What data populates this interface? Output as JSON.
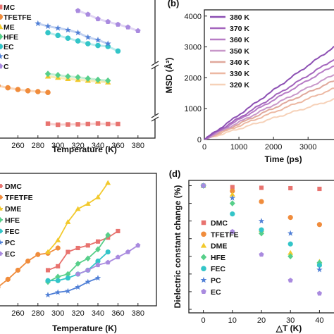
{
  "colors": {
    "DMC": "#e8736f",
    "TFETFE": "#f08c3c",
    "DME": "#f2c92c",
    "HFE": "#57cf8a",
    "FEC": "#33c5c8",
    "PC": "#4f7fd6",
    "EC": "#a98adf"
  },
  "chart_data": [
    {
      "id": "a",
      "type": "line",
      "xlabel": "Temperature (K)",
      "xlim": [
        240,
        385
      ],
      "xticks": [
        "260",
        "280",
        "300",
        "320",
        "340",
        "360",
        "380"
      ],
      "legend": {
        "position": "top-left",
        "labels": [
          "DMC",
          "TFETFE",
          "DME",
          "HFE",
          "FEC",
          "PC",
          "EC"
        ],
        "shown": [
          "MC",
          "TFETFE",
          "ME",
          "HFE",
          "EC",
          "C",
          "C"
        ]
      },
      "series": [
        {
          "name": "DMC",
          "marker": "square",
          "x": [
            290,
            300,
            310,
            320,
            330,
            340,
            350,
            360
          ],
          "y": [
            0.62,
            0.55,
            0.57,
            0.58,
            0.6,
            0.63,
            0.6,
            0.6
          ]
        },
        {
          "name": "TFETFE",
          "marker": "circle",
          "x": [
            240,
            250,
            260,
            270,
            280,
            290
          ],
          "y": [
            4.2,
            3.95,
            3.75,
            3.6,
            3.5,
            3.4
          ]
        },
        {
          "name": "DME",
          "marker": "triangle",
          "x": [
            290,
            300,
            310,
            320,
            330,
            340,
            350
          ],
          "y": [
            5.3,
            5.15,
            5.0,
            4.9,
            4.8,
            4.7,
            4.6
          ]
        },
        {
          "name": "HFE",
          "marker": "diamond",
          "x": [
            290,
            300,
            310,
            320,
            330,
            340,
            350
          ],
          "y": [
            5.6,
            5.45,
            5.3,
            5.2,
            5.05,
            4.9,
            4.8
          ]
        },
        {
          "name": "FEC",
          "marker": "circle",
          "x": [
            290,
            300,
            310,
            320,
            330,
            340,
            350,
            360
          ],
          "y": [
            8.1,
            7.95,
            7.8,
            7.65,
            7.5,
            7.4,
            7.35,
            7.1
          ]
        },
        {
          "name": "PC",
          "marker": "star",
          "x": [
            280,
            290,
            300,
            310,
            320,
            330,
            340,
            350
          ],
          "y": [
            8.6,
            8.45,
            8.35,
            8.25,
            8.1,
            7.85,
            7.7,
            7.5
          ]
        },
        {
          "name": "EC",
          "marker": "pentagon",
          "x": [
            320,
            330,
            340,
            350,
            360,
            370,
            380
          ],
          "y": [
            9.3,
            9.1,
            8.85,
            8.7,
            8.55,
            8.4,
            8.2
          ]
        }
      ]
    },
    {
      "id": "b",
      "type": "line",
      "xlabel": "Time (ps)",
      "ylabel": "MSD (Å²)",
      "xlim": [
        0,
        3750
      ],
      "ylim": [
        0,
        4200
      ],
      "xticks": [
        0,
        1000,
        2000,
        3000
      ],
      "yticks": [
        0,
        1000,
        2000,
        3000,
        4000
      ],
      "legend": {
        "position": "top-left",
        "labels": [
          "380 K",
          "370 K",
          "360 K",
          "350 K",
          "340 K",
          "330 K",
          "320 K"
        ]
      },
      "series": [
        {
          "name": "380 K",
          "color": "#8c4fb3",
          "x": [
            0,
            3750
          ],
          "y": [
            0,
            3000
          ]
        },
        {
          "name": "370 K",
          "color": "#a364bd",
          "x": [
            0,
            3750
          ],
          "y": [
            0,
            2600
          ]
        },
        {
          "name": "360 K",
          "color": "#b77cc6",
          "x": [
            0,
            3750
          ],
          "y": [
            0,
            2400
          ]
        },
        {
          "name": "350 K",
          "color": "#c897c9",
          "x": [
            0,
            3750
          ],
          "y": [
            0,
            2100
          ]
        },
        {
          "name": "340 K",
          "color": "#e0a89b",
          "x": [
            0,
            3750
          ],
          "y": [
            0,
            1900
          ]
        },
        {
          "name": "330 K",
          "color": "#ecb8a2",
          "x": [
            0,
            3750
          ],
          "y": [
            0,
            1650
          ]
        },
        {
          "name": "320 K",
          "color": "#f6d1b8",
          "x": [
            0,
            3750
          ],
          "y": [
            0,
            1300
          ]
        }
      ]
    },
    {
      "id": "c",
      "type": "line",
      "xlabel": "Temperature (K)",
      "xlim": [
        240,
        385
      ],
      "xticks": [
        "260",
        "280",
        "300",
        "320",
        "340",
        "360",
        "380"
      ],
      "ylim": [
        0,
        10
      ],
      "legend": {
        "position": "top-left",
        "labels": [
          "DMC",
          "TFETFE",
          "DME",
          "HFE",
          "FEC",
          "PC",
          "EC"
        ],
        "shown": [
          "DMC",
          "TFETFE",
          "DME",
          "HFE",
          "FEC",
          "PC",
          "EC"
        ]
      },
      "series": [
        {
          "name": "DMC",
          "marker": "square",
          "x": [
            290,
            300,
            310,
            320,
            330,
            340,
            350,
            360
          ],
          "y": [
            2.3,
            2.6,
            3.7,
            4.0,
            4.2,
            4.5,
            4.8,
            5.3
          ]
        },
        {
          "name": "TFETFE",
          "marker": "circle",
          "x": [
            240,
            250,
            260,
            270,
            280,
            290,
            300
          ],
          "y": [
            1.0,
            1.6,
            2.3,
            3.0,
            3.5,
            3.6,
            4.0
          ]
        },
        {
          "name": "DME",
          "marker": "triangle",
          "x": [
            290,
            300,
            310,
            320,
            330,
            340,
            350
          ],
          "y": [
            3.7,
            4.6,
            6.0,
            7.0,
            7.4,
            7.9,
            9.0
          ]
        },
        {
          "name": "HFE",
          "marker": "diamond",
          "x": [
            290,
            300,
            310,
            320,
            330,
            340,
            350
          ],
          "y": [
            1.4,
            1.8,
            2.0,
            2.8,
            3.2,
            3.9,
            5.0
          ]
        },
        {
          "name": "FEC",
          "marker": "circle",
          "x": [
            290,
            300,
            310,
            320,
            330,
            340,
            350
          ],
          "y": [
            1.5,
            1.5,
            1.7,
            2.0,
            2.3,
            3.0,
            3.7
          ]
        },
        {
          "name": "PC",
          "marker": "star",
          "x": [
            290,
            300,
            310,
            320,
            330,
            340
          ],
          "y": [
            0.4,
            0.6,
            0.7,
            1.0,
            1.4,
            1.7
          ]
        },
        {
          "name": "EC",
          "marker": "pentagon",
          "x": [
            320,
            330,
            340,
            350,
            360,
            370,
            380
          ],
          "y": [
            2.0,
            2.3,
            2.7,
            2.9,
            3.3,
            3.7,
            4.2
          ]
        }
      ]
    },
    {
      "id": "d",
      "type": "scatter",
      "xlabel": "△T (K)",
      "ylabel": "Dielectric constant change (%)",
      "xlim": [
        -5,
        45
      ],
      "ylim": [
        -36,
        1.5
      ],
      "xticks": [
        0,
        10,
        20,
        30,
        40
      ],
      "yticks": [
        0,
        -5,
        -10,
        -15,
        -20,
        -25,
        -30,
        -35
      ],
      "legend": {
        "position": "bottom-left",
        "labels": [
          "DMC",
          "TFETFE",
          "DME",
          "HFE",
          "FEC",
          "PC",
          "EC"
        ]
      },
      "series": [
        {
          "name": "DMC",
          "marker": "square",
          "x": [
            0,
            10,
            20,
            30,
            40
          ],
          "y": [
            0,
            -0.4,
            -0.6,
            -0.7,
            -0.9
          ]
        },
        {
          "name": "TFETFE",
          "marker": "circle",
          "x": [
            0,
            10,
            20,
            30,
            40
          ],
          "y": [
            0,
            -1.5,
            -4.5,
            -9.0,
            -11.0
          ]
        },
        {
          "name": "DME",
          "marker": "triangle",
          "x": [
            0,
            10,
            20,
            30,
            40
          ],
          "y": [
            0,
            -2.5,
            -12.5,
            -19.0,
            -21.5
          ]
        },
        {
          "name": "HFE",
          "marker": "diamond",
          "x": [
            0,
            10,
            20,
            30,
            40
          ],
          "y": [
            0,
            -5.0,
            -13.5,
            -20.0,
            -21.8
          ]
        },
        {
          "name": "FEC",
          "marker": "circle",
          "x": [
            0,
            10,
            20,
            30,
            40
          ],
          "y": [
            0,
            -8.0,
            -12.5,
            -16.5,
            -22.5
          ]
        },
        {
          "name": "PC",
          "marker": "star",
          "x": [
            0,
            10,
            20,
            30,
            40
          ],
          "y": [
            0,
            -3.5,
            -10.0,
            -13.5,
            -23.8
          ]
        },
        {
          "name": "EC",
          "marker": "pentagon",
          "x": [
            0,
            10,
            20,
            30,
            40
          ],
          "y": [
            0,
            -13.0,
            -19.5,
            -26.8,
            -30.5
          ]
        }
      ]
    }
  ]
}
